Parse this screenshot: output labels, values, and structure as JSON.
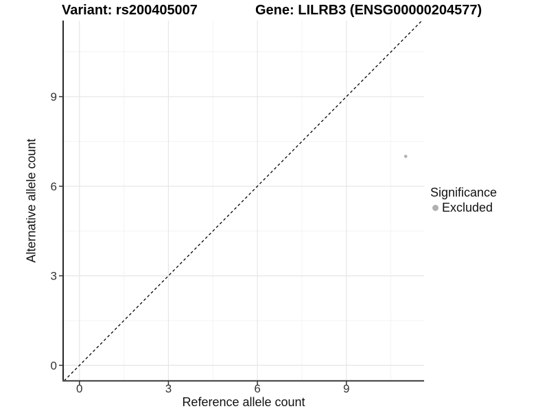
{
  "titles": {
    "left": "Variant: rs200405007",
    "right": "Gene: LILRB3 (ENSG00000204577)"
  },
  "chart_data": {
    "type": "scatter",
    "xlabel": "Reference allele count",
    "ylabel": "Alternative allele count",
    "x_ticks": [
      0,
      3,
      6,
      9
    ],
    "y_ticks": [
      0,
      3,
      6,
      9
    ],
    "x_minor_ticks": [
      1.5,
      4.5,
      7.5,
      10.5
    ],
    "y_minor_ticks": [
      1.5,
      4.5,
      7.5,
      10.5
    ],
    "xlim": [
      -0.55,
      11.62
    ],
    "ylim": [
      -0.52,
      11.55
    ],
    "grid": true,
    "legend_position": "right",
    "series": [
      {
        "name": "Excluded",
        "points": [
          {
            "x": 11,
            "y": 7
          }
        ],
        "color": "#b0b0b0"
      }
    ],
    "reference_line": {
      "style": "dashed",
      "slope": 1,
      "intercept": 0,
      "color": "#000000"
    }
  },
  "legend": {
    "title": "Significance",
    "items": [
      {
        "label": "Excluded",
        "color": "#b0b0b0"
      }
    ]
  },
  "colors": {
    "background": "#ffffff",
    "grid_major": "#e6e6e6",
    "grid_minor": "#f3f3f3",
    "y_axis_line": "#000000",
    "x_axis_line": "#4d4d4d",
    "tick_mark": "#333333",
    "tick_label": "#333333",
    "point": "#b0b0b0"
  }
}
